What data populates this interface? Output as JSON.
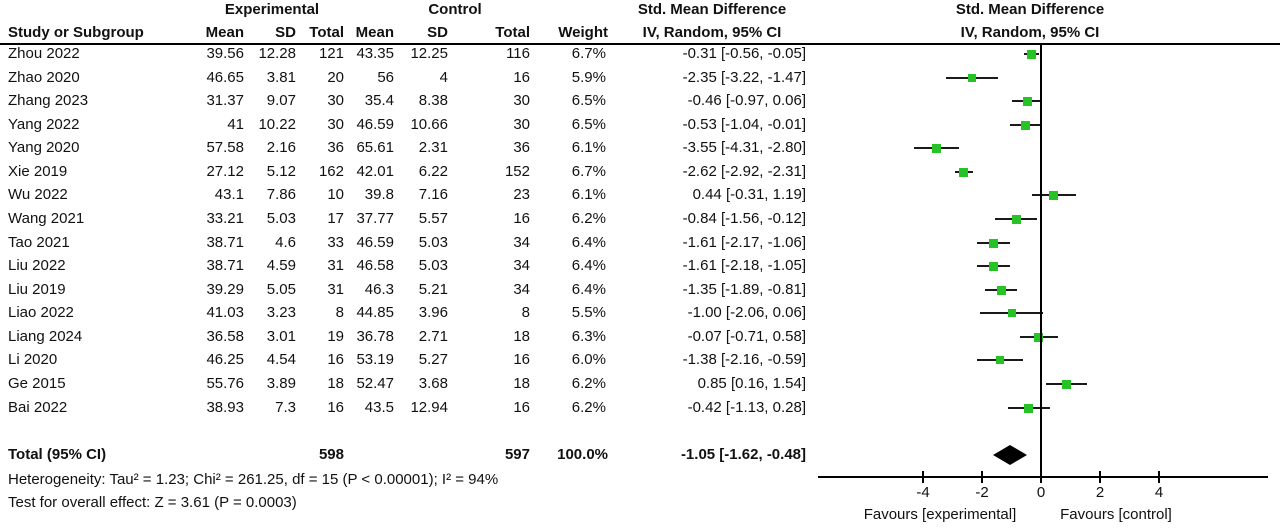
{
  "table": {
    "headers": {
      "study": "Study or Subgroup",
      "group_experimental": "Experimental",
      "group_control": "Control",
      "mean": "Mean",
      "sd": "SD",
      "total": "Total",
      "weight": "Weight",
      "smd_line1": "Std. Mean Difference",
      "smd_line2": "IV, Random, 95% CI"
    }
  },
  "chart_data": {
    "type": "forest",
    "effect_label": "Std. Mean Difference",
    "method_label": "IV, Random, 95% CI",
    "marker_color": "#26c226",
    "line_color": "#1a1a1a",
    "axis": {
      "ticks": [
        -4,
        -2,
        0,
        2,
        4
      ],
      "favours_left": "Favours [experimental]",
      "favours_right": "Favours [control]"
    },
    "studies": [
      {
        "study": "Zhou 2022",
        "mean_e": "39.56",
        "sd_e": "12.28",
        "total_e": "121",
        "mean_c": "43.35",
        "sd_c": "12.25",
        "total_c": "116",
        "weight": "6.7%",
        "weight_val": 6.7,
        "ci_text": "-0.31 [-0.56, -0.05]",
        "smd": -0.31,
        "lo": -0.56,
        "hi": -0.05
      },
      {
        "study": "Zhao 2020",
        "mean_e": "46.65",
        "sd_e": "3.81",
        "total_e": "20",
        "mean_c": "56",
        "sd_c": "4",
        "total_c": "16",
        "weight": "5.9%",
        "weight_val": 5.9,
        "ci_text": "-2.35 [-3.22, -1.47]",
        "smd": -2.35,
        "lo": -3.22,
        "hi": -1.47
      },
      {
        "study": "Zhang 2023",
        "mean_e": "31.37",
        "sd_e": "9.07",
        "total_e": "30",
        "mean_c": "35.4",
        "sd_c": "8.38",
        "total_c": "30",
        "weight": "6.5%",
        "weight_val": 6.5,
        "ci_text": "-0.46 [-0.97, 0.06]",
        "smd": -0.46,
        "lo": -0.97,
        "hi": 0.06
      },
      {
        "study": "Yang 2022",
        "mean_e": "41",
        "sd_e": "10.22",
        "total_e": "30",
        "mean_c": "46.59",
        "sd_c": "10.66",
        "total_c": "30",
        "weight": "6.5%",
        "weight_val": 6.5,
        "ci_text": "-0.53 [-1.04, -0.01]",
        "smd": -0.53,
        "lo": -1.04,
        "hi": -0.01
      },
      {
        "study": "Yang 2020",
        "mean_e": "57.58",
        "sd_e": "2.16",
        "total_e": "36",
        "mean_c": "65.61",
        "sd_c": "2.31",
        "total_c": "36",
        "weight": "6.1%",
        "weight_val": 6.1,
        "ci_text": "-3.55 [-4.31, -2.80]",
        "smd": -3.55,
        "lo": -4.31,
        "hi": -2.8
      },
      {
        "study": "Xie 2019",
        "mean_e": "27.12",
        "sd_e": "5.12",
        "total_e": "162",
        "mean_c": "42.01",
        "sd_c": "6.22",
        "total_c": "152",
        "weight": "6.7%",
        "weight_val": 6.7,
        "ci_text": "-2.62 [-2.92, -2.31]",
        "smd": -2.62,
        "lo": -2.92,
        "hi": -2.31
      },
      {
        "study": "Wu 2022",
        "mean_e": "43.1",
        "sd_e": "7.86",
        "total_e": "10",
        "mean_c": "39.8",
        "sd_c": "7.16",
        "total_c": "23",
        "weight": "6.1%",
        "weight_val": 6.1,
        "ci_text": "0.44 [-0.31, 1.19]",
        "smd": 0.44,
        "lo": -0.31,
        "hi": 1.19
      },
      {
        "study": "Wang 2021",
        "mean_e": "33.21",
        "sd_e": "5.03",
        "total_e": "17",
        "mean_c": "37.77",
        "sd_c": "5.57",
        "total_c": "16",
        "weight": "6.2%",
        "weight_val": 6.2,
        "ci_text": "-0.84 [-1.56, -0.12]",
        "smd": -0.84,
        "lo": -1.56,
        "hi": -0.12
      },
      {
        "study": "Tao 2021",
        "mean_e": "38.71",
        "sd_e": "4.6",
        "total_e": "33",
        "mean_c": "46.59",
        "sd_c": "5.03",
        "total_c": "34",
        "weight": "6.4%",
        "weight_val": 6.4,
        "ci_text": "-1.61 [-2.17, -1.06]",
        "smd": -1.61,
        "lo": -2.17,
        "hi": -1.06
      },
      {
        "study": "Liu 2022",
        "mean_e": "38.71",
        "sd_e": "4.59",
        "total_e": "31",
        "mean_c": "46.58",
        "sd_c": "5.03",
        "total_c": "34",
        "weight": "6.4%",
        "weight_val": 6.4,
        "ci_text": "-1.61 [-2.18, -1.05]",
        "smd": -1.61,
        "lo": -2.18,
        "hi": -1.05
      },
      {
        "study": "Liu 2019",
        "mean_e": "39.29",
        "sd_e": "5.05",
        "total_e": "31",
        "mean_c": "46.3",
        "sd_c": "5.21",
        "total_c": "34",
        "weight": "6.4%",
        "weight_val": 6.4,
        "ci_text": "-1.35 [-1.89, -0.81]",
        "smd": -1.35,
        "lo": -1.89,
        "hi": -0.81
      },
      {
        "study": "Liao 2022",
        "mean_e": "41.03",
        "sd_e": "3.23",
        "total_e": "8",
        "mean_c": "44.85",
        "sd_c": "3.96",
        "total_c": "8",
        "weight": "5.5%",
        "weight_val": 5.5,
        "ci_text": "-1.00 [-2.06, 0.06]",
        "smd": -1.0,
        "lo": -2.06,
        "hi": 0.06
      },
      {
        "study": "Liang 2024",
        "mean_e": "36.58",
        "sd_e": "3.01",
        "total_e": "19",
        "mean_c": "36.78",
        "sd_c": "2.71",
        "total_c": "18",
        "weight": "6.3%",
        "weight_val": 6.3,
        "ci_text": "-0.07 [-0.71, 0.58]",
        "smd": -0.07,
        "lo": -0.71,
        "hi": 0.58
      },
      {
        "study": "Li 2020",
        "mean_e": "46.25",
        "sd_e": "4.54",
        "total_e": "16",
        "mean_c": "53.19",
        "sd_c": "5.27",
        "total_c": "16",
        "weight": "6.0%",
        "weight_val": 6.0,
        "ci_text": "-1.38 [-2.16, -0.59]",
        "smd": -1.38,
        "lo": -2.16,
        "hi": -0.59
      },
      {
        "study": "Ge 2015",
        "mean_e": "55.76",
        "sd_e": "3.89",
        "total_e": "18",
        "mean_c": "52.47",
        "sd_c": "3.68",
        "total_c": "18",
        "weight": "6.2%",
        "weight_val": 6.2,
        "ci_text": "0.85 [0.16, 1.54]",
        "smd": 0.85,
        "lo": 0.16,
        "hi": 1.54
      },
      {
        "study": "Bai 2022",
        "mean_e": "38.93",
        "sd_e": "7.3",
        "total_e": "16",
        "mean_c": "43.5",
        "sd_c": "12.94",
        "total_c": "16",
        "weight": "6.2%",
        "weight_val": 6.2,
        "ci_text": "-0.42 [-1.13, 0.28]",
        "smd": -0.42,
        "lo": -1.13,
        "hi": 0.28
      }
    ],
    "total": {
      "label": "Total (95% CI)",
      "total_e": "598",
      "total_c": "597",
      "weight": "100.0%",
      "ci_text": "-1.05 [-1.62, -0.48]",
      "smd": -1.05,
      "lo": -1.62,
      "hi": -0.48
    },
    "heterogeneity": "Heterogeneity: Tau² = 1.23; Chi² = 261.25, df = 15 (P < 0.00001); I² = 94%",
    "overall_effect": "Test for overall effect: Z = 3.61 (P = 0.0003)"
  }
}
